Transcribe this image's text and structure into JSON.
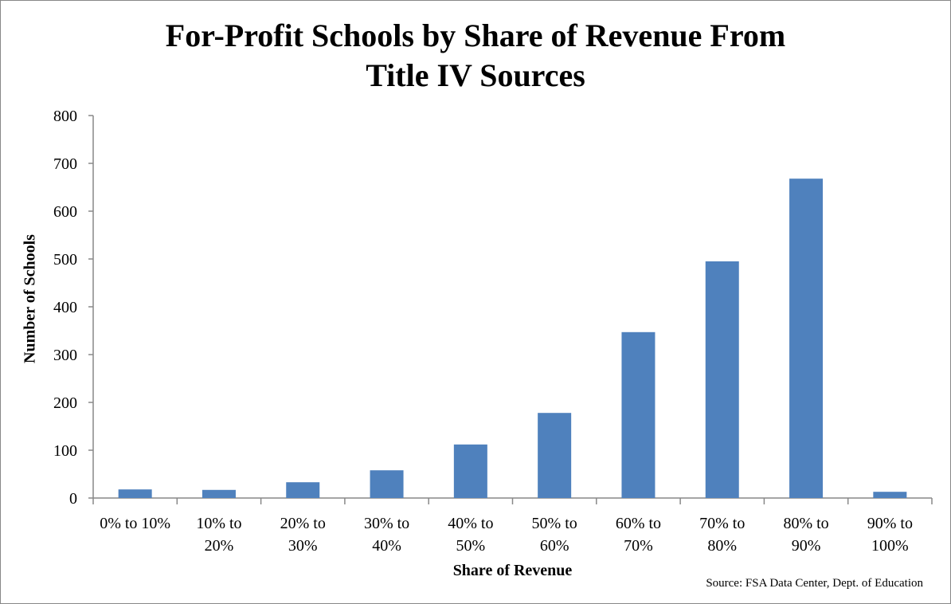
{
  "chart_data": {
    "type": "bar",
    "title_lines": [
      "For-Profit Schools by Share of Revenue From",
      "Title IV Sources"
    ],
    "xlabel": "Share of Revenue",
    "ylabel": "Number of Schools",
    "categories": [
      [
        "0% to 10%"
      ],
      [
        "10% to",
        "20%"
      ],
      [
        "20% to",
        "30%"
      ],
      [
        "30% to",
        "40%"
      ],
      [
        "40% to",
        "50%"
      ],
      [
        "50% to",
        "60%"
      ],
      [
        "60% to",
        "70%"
      ],
      [
        "70% to",
        "80%"
      ],
      [
        "80% to",
        "90%"
      ],
      [
        "90% to",
        "100%"
      ]
    ],
    "values": [
      18,
      17,
      33,
      58,
      112,
      178,
      347,
      495,
      668,
      13
    ],
    "ylim": [
      0,
      800
    ],
    "yticks": [
      0,
      100,
      200,
      300,
      400,
      500,
      600,
      700,
      800
    ],
    "grid": false,
    "bar_color": "#4F81BD",
    "source": "Source: FSA Data Center, Dept. of Education"
  }
}
